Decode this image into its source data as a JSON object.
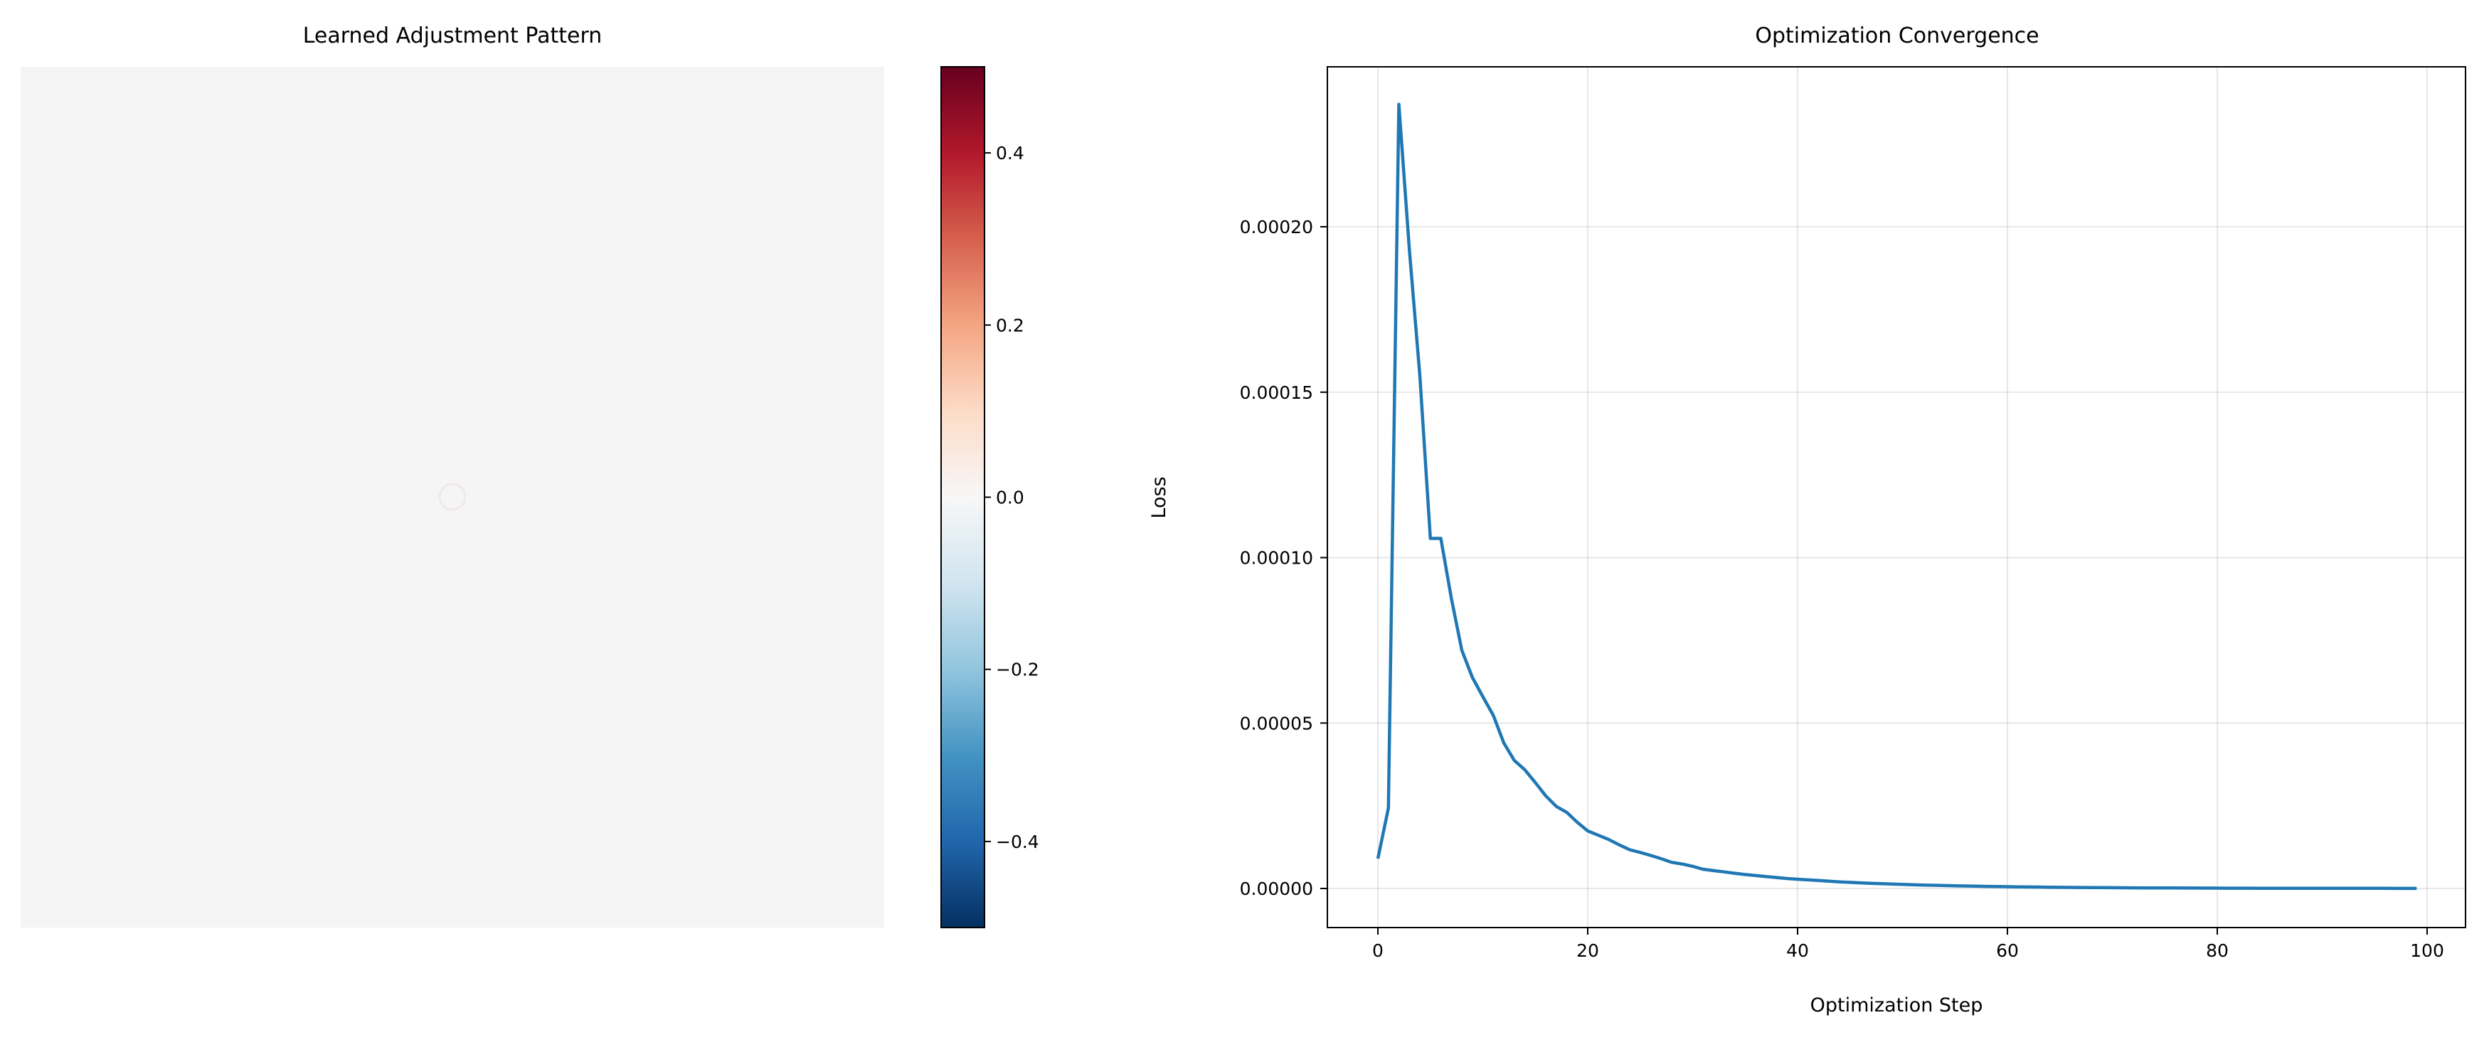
{
  "chart_data": [
    {
      "type": "heatmap",
      "title": "Learned Adjustment Pattern",
      "description_values": "near-uniform field of ~0.0 with a tiny faint feature near center",
      "colormap": "RdBu_r",
      "colorbar": {
        "range": [
          -0.5,
          0.5
        ],
        "ticks": [
          0.4,
          0.2,
          0.0,
          -0.2,
          -0.4
        ],
        "tick_labels": [
          "0.4",
          "0.2",
          "0.0",
          "−0.2",
          "−0.4"
        ],
        "colors": [
          "#67001f",
          "#b2182b",
          "#d6604d",
          "#f4a582",
          "#fddbc7",
          "#f7f7f7",
          "#d1e5f0",
          "#92c5de",
          "#4393c3",
          "#2166ac",
          "#053061"
        ]
      },
      "fill_color": "#f5f5f5",
      "axes_visible": false
    },
    {
      "type": "line",
      "title": "Optimization Convergence",
      "xlabel": "Optimization Step",
      "ylabel": "Loss",
      "xlim": [
        -5,
        104
      ],
      "ylim": [
        -1.2e-05,
        0.000245
      ],
      "xticks": [
        0,
        20,
        40,
        60,
        80,
        100
      ],
      "xtick_labels": [
        "0",
        "20",
        "40",
        "60",
        "80",
        "100"
      ],
      "yticks": [
        0,
        5e-05,
        0.0001,
        0.00015,
        0.0002
      ],
      "ytick_labels": [
        "0.00000",
        "0.00005",
        "0.00010",
        "0.00015",
        "0.00020"
      ],
      "grid": true,
      "series": [
        {
          "name": "loss",
          "color": "#1f77b4",
          "x_start": 0,
          "x_step": 1,
          "values": [
            9e-06,
            2.43e-05,
            0.000237,
            0.000193,
            0.000155,
            0.0001058,
            0.0001058,
            8.77e-05,
            7.2e-05,
            6.38e-05,
            5.8e-05,
            5.23e-05,
            4.4e-05,
            3.87e-05,
            3.59e-05,
            3.2e-05,
            2.8e-05,
            2.48e-05,
            2.3e-05,
            2e-05,
            1.74e-05,
            1.61e-05,
            1.48e-05,
            1.32e-05,
            1.17e-05,
            1.09e-05,
            1e-05,
            9e-06,
            7.9e-06,
            7.4e-06,
            6.7e-06,
            5.8e-06,
            5.4e-06,
            5e-06,
            4.6e-06,
            4.2e-06,
            3.9e-06,
            3.6e-06,
            3.3e-06,
            3e-06,
            2.8e-06,
            2.6e-06,
            2.4e-06,
            2.2e-06,
            2e-06,
            1.85e-06,
            1.7e-06,
            1.57e-06,
            1.45e-06,
            1.34e-06,
            1.23e-06,
            1.13e-06,
            1.04e-06,
            9.6e-07,
            8.8e-07,
            8.1e-07,
            7.5e-07,
            6.9e-07,
            6.3e-07,
            5.8e-07,
            5.4e-07,
            4.9e-07,
            4.5e-07,
            4.2e-07,
            3.8e-07,
            3.5e-07,
            3.2e-07,
            3e-07,
            2.7e-07,
            2.5e-07,
            2.3e-07,
            2.1e-07,
            2e-07,
            1.8e-07,
            1.7e-07,
            1.5e-07,
            1.4e-07,
            1.3e-07,
            1.2e-07,
            1.1e-07,
            1e-07,
            9e-08,
            8.5e-08,
            8e-08,
            7.5e-08,
            7e-08,
            6.5e-08,
            6e-08,
            5.5e-08,
            5e-08,
            4.8e-08,
            4.5e-08,
            4.2e-08,
            4e-08,
            3.8e-08,
            3.6e-08,
            3.4e-08,
            3.2e-08,
            3e-08,
            2.8e-08
          ]
        }
      ]
    }
  ]
}
